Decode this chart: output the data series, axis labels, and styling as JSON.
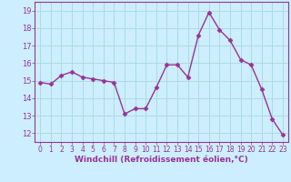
{
  "x": [
    0,
    1,
    2,
    3,
    4,
    5,
    6,
    7,
    8,
    9,
    10,
    11,
    12,
    13,
    14,
    15,
    16,
    17,
    18,
    19,
    20,
    21,
    22,
    23
  ],
  "y": [
    14.9,
    14.8,
    15.3,
    15.5,
    15.2,
    15.1,
    15.0,
    14.9,
    13.1,
    13.4,
    13.4,
    14.6,
    15.9,
    15.9,
    15.2,
    17.6,
    18.9,
    17.9,
    17.3,
    16.2,
    15.9,
    14.5,
    12.8,
    11.9
  ],
  "line_color": "#993399",
  "marker": "D",
  "markersize": 2.5,
  "linewidth": 1.0,
  "xlabel": "Windchill (Refroidissement éolien,°C)",
  "xlabel_fontsize": 6.5,
  "yticks": [
    12,
    13,
    14,
    15,
    16,
    17,
    18,
    19
  ],
  "xticks": [
    0,
    1,
    2,
    3,
    4,
    5,
    6,
    7,
    8,
    9,
    10,
    11,
    12,
    13,
    14,
    15,
    16,
    17,
    18,
    19,
    20,
    21,
    22,
    23
  ],
  "xlim": [
    -0.5,
    23.5
  ],
  "ylim": [
    11.5,
    19.5
  ],
  "bg_color": "#cceeff",
  "grid_color": "#aadddd",
  "tick_color": "#993399",
  "label_color": "#993399",
  "tick_fontsize": 5.5,
  "ytick_fontsize": 6.0
}
